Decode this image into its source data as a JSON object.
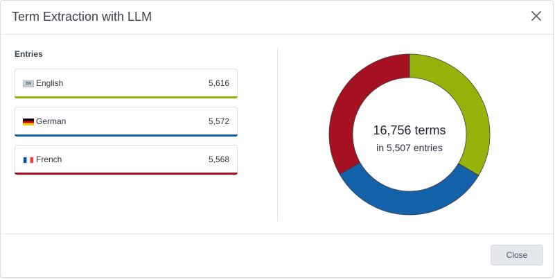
{
  "dialog": {
    "title": "Term Extraction with LLM",
    "close_icon": "close-icon"
  },
  "entries": {
    "label": "Entries",
    "items": [
      {
        "flag": "EN",
        "flag_icon": "uk-flag-icon",
        "language": "English",
        "count": "5,616",
        "color": "#95b30b"
      },
      {
        "flag": "",
        "flag_icon": "german-flag-icon",
        "language": "German",
        "count": "5,572",
        "color": "#1361a8"
      },
      {
        "flag": "",
        "flag_icon": "french-flag-icon",
        "language": "French",
        "count": "5,568",
        "color": "#a51121"
      }
    ]
  },
  "summary": {
    "terms": "16,756 terms",
    "entries": "in 5,507 entries"
  },
  "chart_data": {
    "type": "pie",
    "donut": true,
    "labels": [
      "English",
      "German",
      "French"
    ],
    "values": [
      5616,
      5572,
      5568
    ],
    "colors": [
      "#95b30b",
      "#1361a8",
      "#a51121"
    ]
  },
  "footer": {
    "close_label": "Close"
  }
}
